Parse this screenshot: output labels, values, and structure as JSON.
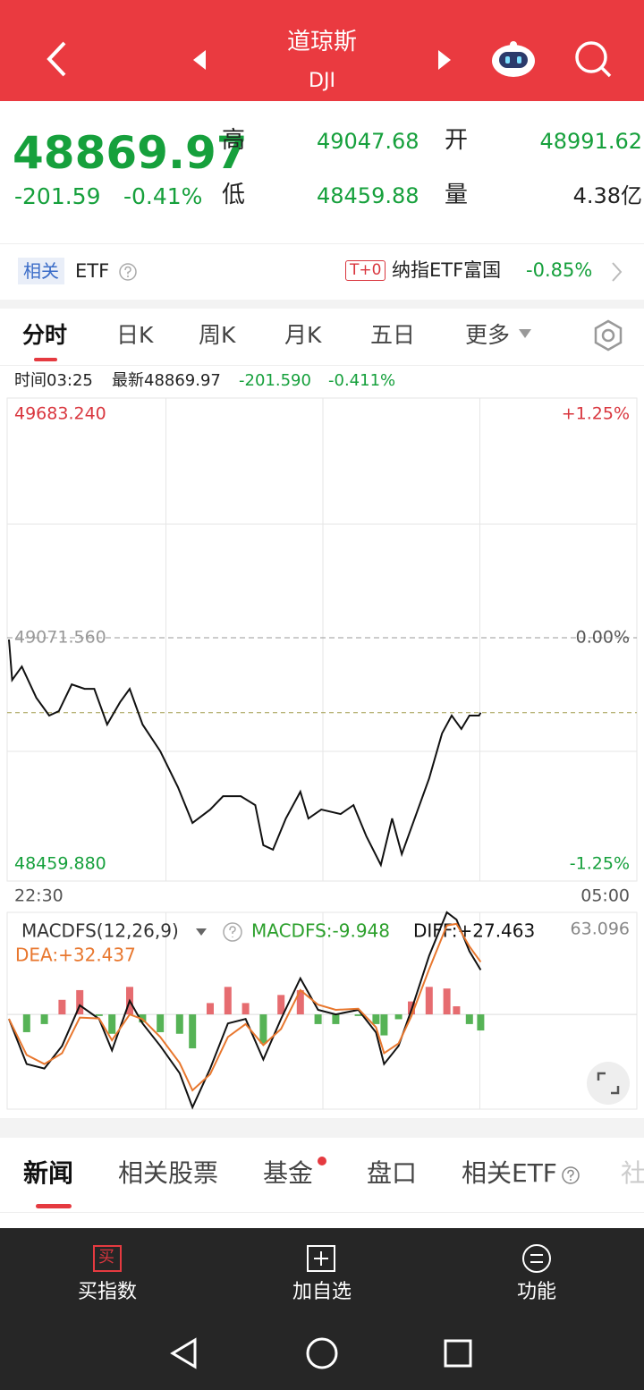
{
  "header": {
    "title": "道琼斯",
    "subtitle": "DJI"
  },
  "quote": {
    "price": "48869.97",
    "change": "-201.59",
    "change_pct": "-0.41%",
    "stats": [
      {
        "label": "高",
        "value": "49047.68"
      },
      {
        "label": "开",
        "value": "48991.62"
      },
      {
        "label": "低",
        "value": "48459.88"
      },
      {
        "label": "量",
        "value": "4.38亿"
      }
    ]
  },
  "related": {
    "tag": "相关",
    "label": "ETF",
    "badge": "T+0",
    "fund": "纳指ETF富国",
    "change": "-0.85%"
  },
  "tabs": [
    "分时",
    "日K",
    "周K",
    "月K",
    "五日",
    "更多"
  ],
  "info": [
    "时间03:25",
    "最新48869.97",
    "-201.590",
    "-0.411%"
  ],
  "chart_data": [
    {
      "type": "line",
      "x": [
        0,
        2,
        8,
        17,
        25,
        31,
        39,
        47,
        53,
        61,
        69,
        75,
        83,
        94,
        105,
        114,
        125,
        133,
        144,
        153,
        158,
        164,
        172,
        181,
        186,
        194,
        206,
        214,
        222,
        231,
        238,
        244,
        253,
        261,
        269,
        275,
        281,
        286,
        292,
        293
      ],
      "series": [
        {
          "color": "#111111",
          "values": [
            49067,
            48958,
            48994,
            48910,
            48862,
            48874,
            48946,
            48934,
            48934,
            48838,
            48898,
            48934,
            48838,
            48766,
            48669,
            48573,
            48609,
            48645,
            48645,
            48621,
            48513,
            48501,
            48585,
            48657,
            48585,
            48609,
            48597,
            48621,
            48537,
            48460,
            48585,
            48489,
            48597,
            48693,
            48814,
            48862,
            48826,
            48862,
            48862,
            48869.97
          ]
        }
      ],
      "xlim": [
        0,
        390
      ],
      "xticks": [
        {
          "value": 0,
          "label": "22:30"
        },
        {
          "value": 390,
          "label": "05:00"
        }
      ],
      "ylim": [
        48459.88,
        49683.24
      ],
      "yticks": [
        {
          "value": 49683.24,
          "label": "49683.240"
        },
        {
          "value": 49071.56,
          "label": "49071.560"
        },
        {
          "value": 48459.88,
          "label": "48459.880"
        }
      ],
      "y2lim": [
        -1.25,
        1.25
      ],
      "y2ticks": [
        {
          "value": 1.25,
          "label": "+1.25%"
        },
        {
          "value": 0,
          "label": "0.00%"
        },
        {
          "value": -1.25,
          "label": "-1.25%"
        }
      ],
      "grid": true
    },
    {
      "type": "macd",
      "title": "MACDFS(12,26,9)",
      "x": [
        0,
        11,
        22,
        33,
        44,
        56,
        64,
        75,
        83,
        94,
        106,
        114,
        125,
        136,
        147,
        158,
        169,
        181,
        192,
        203,
        217,
        228,
        233,
        242,
        250,
        261,
        272,
        278,
        286,
        293
      ],
      "series": [
        {
          "name": "MACDFS:-9.948",
          "color": "#2ca02c",
          "values": [
            0,
            -11,
            -6,
            9,
            15,
            -1,
            -12,
            17,
            -5,
            -11,
            -12,
            -21,
            7,
            17,
            7,
            -18,
            12,
            15,
            -6,
            -6,
            -1,
            -6,
            -13,
            -3,
            8,
            17,
            16,
            5,
            -6,
            -9.948
          ]
        },
        {
          "name": "DIFF:+27.463",
          "color": "#111111",
          "values": [
            -2.8,
            -30.7,
            -33.5,
            -19.5,
            5.6,
            -2.8,
            -22.3,
            8.4,
            -5.6,
            -19.5,
            -36.3,
            -57.5,
            -33.5,
            -5.6,
            -2.8,
            -27.9,
            -2.8,
            22.3,
            2.8,
            0,
            2.8,
            -11.2,
            -30.7,
            -19.5,
            2.8,
            36.3,
            63.1,
            58.6,
            39.1,
            27.463
          ]
        },
        {
          "name": "DEA:+32.437",
          "color": "#e8772e",
          "values": [
            -2.8,
            -25.1,
            -30.7,
            -24,
            -2,
            -2.5,
            -16,
            0,
            -3,
            -14,
            -30,
            -47,
            -37,
            -14,
            -6,
            -19,
            -9,
            15,
            6,
            2.8,
            3.5,
            -8,
            -24,
            -18,
            -1,
            28,
            55,
            56,
            42,
            32.437
          ]
        }
      ],
      "xlim": [
        0,
        390
      ],
      "ylim": [
        -58.6,
        63.096
      ],
      "yticks": [
        63.096
      ],
      "up_color": "#e0474c"
    }
  ],
  "news_tabs": [
    "新闻",
    "相关股票",
    "基金",
    "盘口",
    "相关ETF",
    "社"
  ],
  "bottom_bar": {
    "buy_icon": "买",
    "items": [
      "买指数",
      "加自选",
      "功能"
    ]
  }
}
